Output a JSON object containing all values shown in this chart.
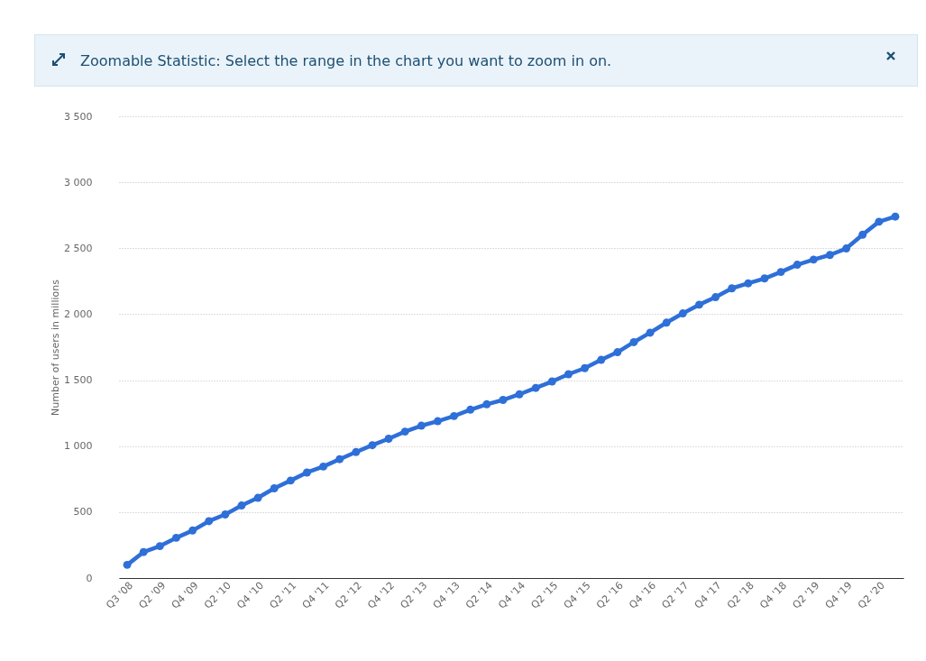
{
  "chart_data": {
    "type": "line",
    "ylabel": "Number of users in millions",
    "annotations": [
      "Zoomable Statistic: Select the range in the chart you want to zoom in on."
    ],
    "categories": [
      "Q3 '08",
      null,
      "Q2 '09",
      null,
      "Q4 '09",
      null,
      "Q2 '10",
      null,
      "Q4 '10",
      null,
      "Q2 '11",
      null,
      "Q4 '11",
      null,
      "Q2 '12",
      null,
      "Q4 '12",
      null,
      "Q2 '13",
      null,
      "Q4 '13",
      null,
      "Q2 '14",
      null,
      "Q4 '14",
      null,
      "Q2 '15",
      null,
      "Q4 '15",
      null,
      "Q2 '16",
      null,
      "Q4 '16",
      null,
      "Q2 '17",
      null,
      "Q4 '17",
      null,
      "Q2 '18",
      null,
      "Q4 '18",
      null,
      "Q2 '19",
      null,
      "Q4 '19",
      null,
      "Q2 '20",
      null
    ],
    "series": [
      {
        "color": "#2e6fd8",
        "values": [
          100,
          197,
          242,
          305,
          360,
          431,
          482,
          550,
          608,
          680,
          739,
          800,
          845,
          901,
          955,
          1007,
          1056,
          1110,
          1155,
          1189,
          1228,
          1276,
          1317,
          1350,
          1393,
          1441,
          1490,
          1545,
          1591,
          1654,
          1712,
          1788,
          1860,
          1936,
          2006,
          2072,
          2129,
          2196,
          2234,
          2271,
          2320,
          2375,
          2414,
          2449,
          2498,
          2603,
          2701,
          2740
        ]
      }
    ],
    "ylim": [
      0,
      3500
    ],
    "yticks": [
      0,
      500,
      {
        "value": 1000,
        "label": "1 000"
      },
      {
        "value": 1500,
        "label": "1 500"
      },
      {
        "value": 2000,
        "label": "2 000"
      },
      {
        "value": 2500,
        "label": "2 500"
      },
      {
        "value": 3000,
        "label": "3 000"
      },
      {
        "value": 3500,
        "label": "3 500"
      }
    ],
    "grid": "y",
    "marker": "circle",
    "line_style": "solid"
  }
}
